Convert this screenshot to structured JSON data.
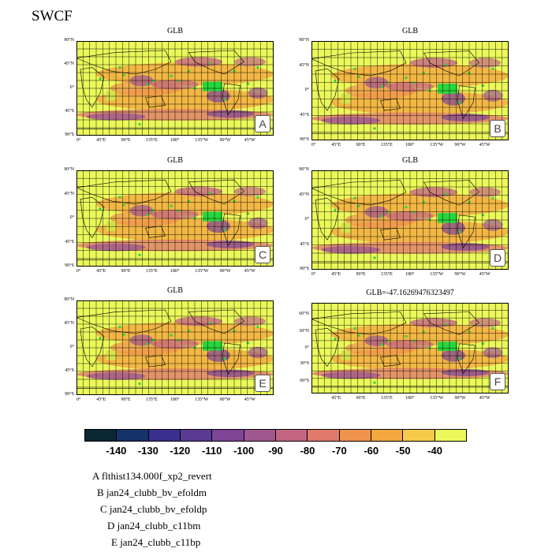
{
  "title": "SWCF",
  "colors": {
    "low": "#e04ea8",
    "high": "#f3f25e",
    "grid": "#000000",
    "green_marker": "#27d63d",
    "colorbar": [
      "#0b2734",
      "#15326a",
      "#3a2f8f",
      "#5a3b93",
      "#7e4595",
      "#a0578f",
      "#c36582",
      "#e07a6b",
      "#f0934e",
      "#f4a63f",
      "#f5c94a",
      "#ebf85a"
    ]
  },
  "colorbar": {
    "labels": [
      "-140",
      "-130",
      "-120",
      "-110",
      "-100",
      "-90",
      "-80",
      "-70",
      "-60",
      "-50",
      "-40"
    ]
  },
  "lat_labels_global": [
    "90°N",
    "45°N",
    "0°",
    "45°S",
    "90°S"
  ],
  "lat_labels_f": [
    "60°N",
    "30°N",
    "0°",
    "30°S",
    "60°S"
  ],
  "lon_labels_global": [
    "0°",
    "45°E",
    "90°E",
    "135°E",
    "180°",
    "135°W",
    "90°W",
    "45°W"
  ],
  "lon_labels_f": [
    "45°E",
    "90°E",
    "135°E",
    "180°",
    "135°W",
    "90°W",
    "45°W"
  ],
  "panels": [
    {
      "title": "GLB",
      "letter": "A"
    },
    {
      "title": "GLB",
      "letter": "B"
    },
    {
      "title": "GLB",
      "letter": "C"
    },
    {
      "title": "GLB",
      "letter": "D"
    },
    {
      "title": "GLB",
      "letter": "E"
    },
    {
      "title": "GLB=-47.16269476323497",
      "letter": "F"
    }
  ],
  "cases": [
    "A  flthist134.000f_xp2_revert",
    "B  jan24_clubb_bv_efoldm",
    "C  jan24_clubb_bv_efoldp",
    "D  jan24_clubb_c11bm",
    "E  jan24_clubb_c11bp"
  ],
  "chart_data": {
    "type": "heatmap",
    "title": "SWCF",
    "colorbar_levels": [
      -140,
      -130,
      -120,
      -110,
      -100,
      -90,
      -80,
      -70,
      -60,
      -50,
      -40
    ],
    "panel_titles": [
      "GLB",
      "GLB",
      "GLB",
      "GLB",
      "GLB",
      "GLB=-47.16269476323497"
    ],
    "global_mean_f": -47.16269476323497,
    "x_range": [
      0,
      360
    ],
    "y_range": [
      -90,
      90
    ]
  }
}
